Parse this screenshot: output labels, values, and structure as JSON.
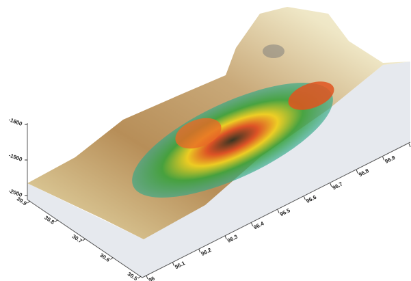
{
  "chart_data": {
    "type": "surface3d",
    "xlim": [
      96,
      97
    ],
    "xticks": [
      96,
      96.1,
      96.2,
      96.3,
      96.4,
      96.5,
      96.6,
      96.7,
      96.8,
      96.9,
      97
    ],
    "ylim": [
      30.5,
      30.9
    ],
    "yticks": [
      30.5,
      30.6,
      30.7,
      30.8,
      30.9
    ],
    "zlim": [
      -2000,
      -1800
    ],
    "zticks": [
      -2000,
      -1900,
      -1800
    ]
  }
}
